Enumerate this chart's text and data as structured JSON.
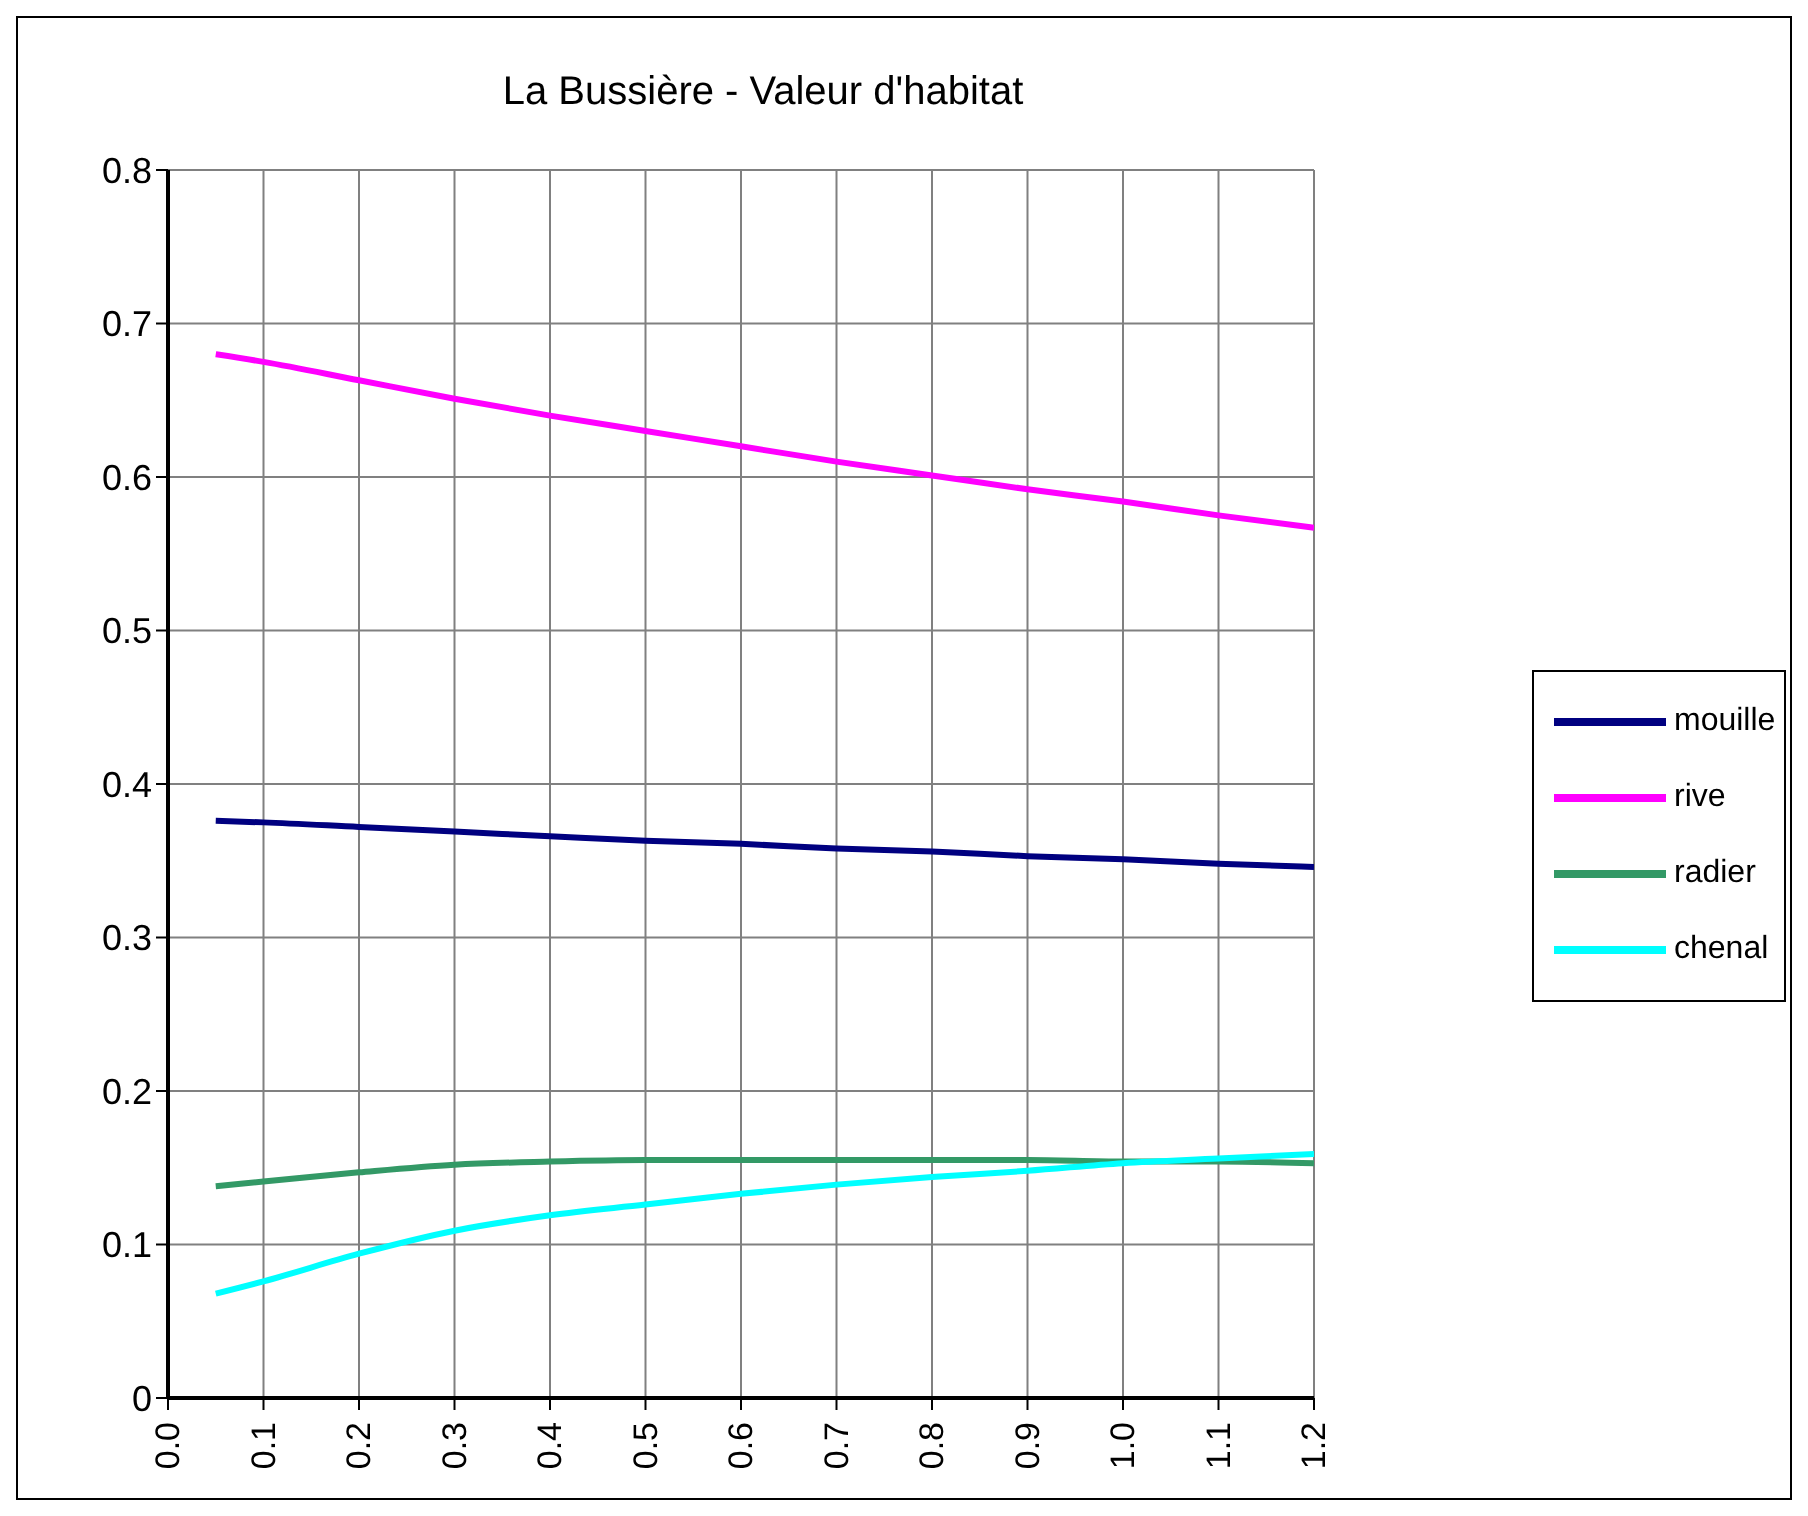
{
  "chart_data": {
    "type": "line",
    "title": "La Bussière - Valeur d'habitat",
    "x": [
      0.05,
      0.1,
      0.2,
      0.3,
      0.4,
      0.5,
      0.6,
      0.7,
      0.8,
      0.9,
      1.0,
      1.1,
      1.2
    ],
    "series": [
      {
        "name": "mouille",
        "color": "#000080",
        "values": [
          0.376,
          0.375,
          0.372,
          0.369,
          0.366,
          0.363,
          0.361,
          0.358,
          0.356,
          0.353,
          0.351,
          0.348,
          0.346
        ]
      },
      {
        "name": "rive",
        "color": "#ff00ff",
        "values": [
          0.68,
          0.675,
          0.663,
          0.651,
          0.64,
          0.63,
          0.62,
          0.61,
          0.601,
          0.592,
          0.584,
          0.575,
          0.567
        ]
      },
      {
        "name": "radier",
        "color": "#339966",
        "values": [
          0.138,
          0.141,
          0.147,
          0.152,
          0.154,
          0.155,
          0.155,
          0.155,
          0.155,
          0.155,
          0.154,
          0.154,
          0.153
        ]
      },
      {
        "name": "chenal",
        "color": "#00ffff",
        "values": [
          0.068,
          0.076,
          0.094,
          0.109,
          0.119,
          0.126,
          0.133,
          0.139,
          0.144,
          0.148,
          0.153,
          0.156,
          0.159
        ]
      }
    ],
    "xlim": [
      0,
      1.2
    ],
    "xticks": [
      {
        "value": 0,
        "label": "0.0"
      },
      {
        "value": 0.1,
        "label": "0.1"
      },
      {
        "value": 0.2,
        "label": "0.2"
      },
      {
        "value": 0.3,
        "label": "0.3"
      },
      {
        "value": 0.4,
        "label": "0.4"
      },
      {
        "value": 0.5,
        "label": "0.5"
      },
      {
        "value": 0.6,
        "label": "0.6"
      },
      {
        "value": 0.7,
        "label": "0.7"
      },
      {
        "value": 0.8,
        "label": "0.8"
      },
      {
        "value": 0.9,
        "label": "0.9"
      },
      {
        "value": 1.0,
        "label": "1.0"
      },
      {
        "value": 1.1,
        "label": "1.1"
      },
      {
        "value": 1.2,
        "label": "1.2"
      }
    ],
    "ylim": [
      0,
      0.8
    ],
    "yticks": [
      0,
      0.1,
      0.2,
      0.3,
      0.4,
      0.5,
      0.6,
      0.7,
      0.8
    ],
    "grid": true,
    "legend": "right",
    "marker": "none",
    "line_style": "solid"
  }
}
